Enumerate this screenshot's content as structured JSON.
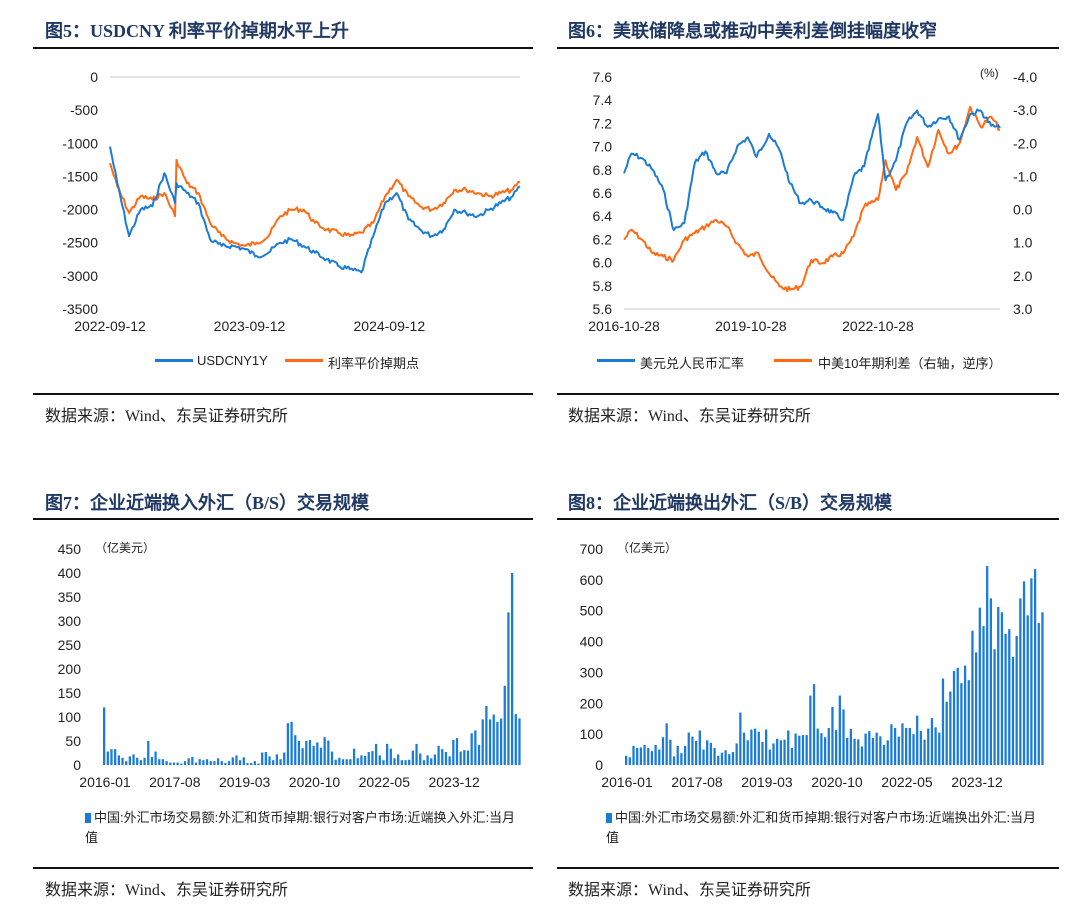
{
  "colors": {
    "blue": "#1a7cd6",
    "orange": "#ff6a13",
    "title": "#1f3864"
  },
  "panels": [
    {
      "title": "图5：USDCNY 利率平价掉期水平上升",
      "source": "数据来源：Wind、东吴证券研究所"
    },
    {
      "title": "图6：美联储降息或推动中美利差倒挂幅度收窄",
      "source": "数据来源：Wind、东吴证券研究所"
    },
    {
      "title": "图7：企业近端换入外汇（B/S）交易规模",
      "source": "数据来源：Wind、东吴证券研究所"
    },
    {
      "title": "图8：企业近端换出外汇（S/B）交易规模",
      "source": "数据来源：Wind、东吴证券研究所"
    }
  ],
  "chart_data": [
    {
      "type": "line",
      "title": "图5：USDCNY 利率平价掉期水平上升",
      "ylim": [
        -3500,
        0
      ],
      "y_ticks": [
        "0",
        "-500",
        "-1000",
        "-1500",
        "-2000",
        "-2500",
        "-3000",
        "-3500"
      ],
      "x_ticks": [
        "2022-09-12",
        "2023-09-12",
        "2024-09-12"
      ],
      "x_range": [
        "2022-09-12",
        "2025-08-20"
      ],
      "grid": "top line only",
      "legend": "bottom",
      "series": [
        {
          "name": "USDCNY1Y",
          "color": "#1a7cd6",
          "x": [
            "2022-09-12",
            "2022-10-01",
            "2022-11-01",
            "2022-12-01",
            "2023-01-01",
            "2023-02-01",
            "2023-03-01",
            "2023-03-05",
            "2023-04-01",
            "2023-05-01",
            "2023-06-01",
            "2023-07-01",
            "2023-08-01",
            "2023-09-01",
            "2023-10-01",
            "2023-11-01",
            "2023-12-01",
            "2024-01-01",
            "2024-02-01",
            "2024-03-01",
            "2024-04-01",
            "2024-05-01",
            "2024-06-01",
            "2024-07-01",
            "2024-08-01",
            "2024-09-01",
            "2024-10-01",
            "2024-11-01",
            "2024-12-01",
            "2025-01-01",
            "2025-02-01",
            "2025-03-01",
            "2025-04-01",
            "2025-05-01",
            "2025-06-01",
            "2025-07-01",
            "2025-08-01",
            "2025-08-20"
          ],
          "y": [
            -1050,
            -1600,
            -2400,
            -2000,
            -1950,
            -1450,
            -1900,
            -1600,
            -1750,
            -1900,
            -2450,
            -2550,
            -2550,
            -2600,
            -2700,
            -2650,
            -2500,
            -2450,
            -2550,
            -2650,
            -2750,
            -2850,
            -2900,
            -2950,
            -2400,
            -1900,
            -1750,
            -2150,
            -2300,
            -2400,
            -2300,
            -2000,
            -2050,
            -2100,
            -2000,
            -1900,
            -1800,
            -1650
          ]
        },
        {
          "name": "利率平价掉期点",
          "color": "#ff6a13",
          "x": [
            "2022-09-12",
            "2022-10-01",
            "2022-11-01",
            "2022-12-01",
            "2023-01-01",
            "2023-02-01",
            "2023-03-01",
            "2023-03-05",
            "2023-04-01",
            "2023-05-01",
            "2023-06-01",
            "2023-07-01",
            "2023-08-01",
            "2023-09-01",
            "2023-10-01",
            "2023-11-01",
            "2023-12-01",
            "2024-01-01",
            "2024-02-01",
            "2024-03-01",
            "2024-04-01",
            "2024-05-01",
            "2024-06-01",
            "2024-07-01",
            "2024-08-01",
            "2024-09-01",
            "2024-10-01",
            "2024-11-01",
            "2024-12-01",
            "2025-01-01",
            "2025-02-01",
            "2025-03-01",
            "2025-04-01",
            "2025-05-01",
            "2025-06-01",
            "2025-07-01",
            "2025-08-01",
            "2025-08-20"
          ],
          "y": [
            -1300,
            -1650,
            -2050,
            -1800,
            -1850,
            -1750,
            -2100,
            -1250,
            -1600,
            -1750,
            -2200,
            -2400,
            -2500,
            -2550,
            -2500,
            -2400,
            -2100,
            -2000,
            -2000,
            -2200,
            -2300,
            -2350,
            -2400,
            -2350,
            -2200,
            -1800,
            -1550,
            -1800,
            -1950,
            -2000,
            -1900,
            -1700,
            -1700,
            -1750,
            -1800,
            -1750,
            -1700,
            -1580
          ]
        }
      ]
    },
    {
      "type": "line",
      "title": "图6：美联储降息或推动中美利差倒挂幅度收窄",
      "ylim": [
        5.6,
        7.6
      ],
      "y2lim": [
        -4.0,
        3.0
      ],
      "y2_reversed": true,
      "y2_unit": "(%)",
      "y_ticks": [
        "7.6",
        "7.4",
        "7.2",
        "7.0",
        "6.8",
        "6.6",
        "6.4",
        "6.2",
        "6.0",
        "5.8",
        "5.6"
      ],
      "y2_ticks": [
        "-4.0",
        "-3.0",
        "-2.0",
        "-1.0",
        "0.0",
        "1.0",
        "2.0",
        "3.0"
      ],
      "x_ticks": [
        "2016-10-28",
        "2019-10-28",
        "2022-10-28"
      ],
      "x_range": [
        "2016-10-28",
        "2025-09-15"
      ],
      "legend": "bottom",
      "series": [
        {
          "name": "美元兑人民币汇率",
          "color": "#1a7cd6",
          "axis": "left",
          "x": [
            "2016-10-28",
            "2017-01-01",
            "2017-04-01",
            "2017-07-01",
            "2017-10-01",
            "2018-01-01",
            "2018-04-01",
            "2018-07-01",
            "2018-10-01",
            "2019-01-01",
            "2019-04-01",
            "2019-07-01",
            "2019-10-01",
            "2019-12-15",
            "2020-04-01",
            "2020-07-01",
            "2020-10-01",
            "2021-01-01",
            "2021-04-01",
            "2021-07-01",
            "2021-10-01",
            "2022-01-01",
            "2022-04-01",
            "2022-07-01",
            "2022-10-28",
            "2023-01-01",
            "2023-04-01",
            "2023-07-01",
            "2023-10-01",
            "2024-01-01",
            "2024-04-01",
            "2024-07-01",
            "2024-10-01",
            "2025-01-01",
            "2025-04-01",
            "2025-07-01",
            "2025-09-15"
          ],
          "y": [
            6.77,
            6.94,
            6.9,
            6.8,
            6.63,
            6.28,
            6.34,
            6.86,
            6.96,
            6.77,
            6.77,
            7.0,
            7.08,
            6.91,
            7.11,
            6.97,
            6.68,
            6.51,
            6.54,
            6.48,
            6.43,
            6.37,
            6.74,
            6.83,
            7.28,
            6.71,
            6.88,
            7.2,
            7.31,
            7.17,
            7.24,
            7.26,
            7.06,
            7.28,
            7.31,
            7.18,
            7.16
          ]
        },
        {
          "name": "中美10年期利差（右轴，逆序）",
          "color": "#ff6a13",
          "axis": "right",
          "x": [
            "2016-10-28",
            "2017-01-01",
            "2017-04-01",
            "2017-07-01",
            "2017-10-01",
            "2018-01-01",
            "2018-04-01",
            "2018-07-01",
            "2018-10-01",
            "2019-01-01",
            "2019-04-01",
            "2019-07-01",
            "2019-10-01",
            "2020-01-01",
            "2020-04-01",
            "2020-07-01",
            "2020-10-01",
            "2021-01-01",
            "2021-04-01",
            "2021-07-01",
            "2021-10-01",
            "2022-01-01",
            "2022-04-01",
            "2022-07-01",
            "2022-10-28",
            "2023-01-01",
            "2023-04-01",
            "2023-07-01",
            "2023-10-01",
            "2024-01-01",
            "2024-04-01",
            "2024-07-01",
            "2024-10-01",
            "2025-01-01",
            "2025-04-01",
            "2025-07-01",
            "2025-09-15"
          ],
          "y": [
            0.91,
            0.61,
            0.91,
            1.32,
            1.42,
            1.52,
            0.91,
            0.71,
            0.51,
            0.31,
            0.51,
            1.02,
            1.42,
            1.32,
            1.92,
            2.32,
            2.42,
            2.32,
            1.52,
            1.62,
            1.42,
            1.32,
            0.81,
            -0.09,
            -0.29,
            -1.49,
            -0.59,
            -1.09,
            -2.19,
            -1.29,
            -2.4,
            -1.69,
            -1.99,
            -3.1,
            -2.5,
            -2.8,
            -2.4
          ]
        }
      ]
    },
    {
      "type": "bar",
      "title": "图7：企业近端换入外汇（B/S）交易规模",
      "unit": "（亿美元）",
      "ylim": [
        0,
        450
      ],
      "y_ticks": [
        "450",
        "400",
        "350",
        "300",
        "250",
        "200",
        "150",
        "100",
        "50",
        "0"
      ],
      "x_ticks": [
        "2016-01",
        "2017-08",
        "2019-03",
        "2020-10",
        "2022-05",
        "2023-12"
      ],
      "start_month": "2016-01",
      "legend": "bottom",
      "series": [
        {
          "name": "中国:外汇市场交易额:外汇和货币掉期:银行对客户市场:近端换入外汇:当月值",
          "color": "#1a7cd6",
          "values": [
            120,
            28,
            33,
            33,
            20,
            15,
            8,
            18,
            22,
            15,
            10,
            15,
            50,
            17,
            28,
            12,
            12,
            8,
            5,
            5,
            5,
            3,
            8,
            14,
            17,
            5,
            12,
            10,
            12,
            8,
            8,
            14,
            8,
            4,
            8,
            16,
            20,
            10,
            16,
            4,
            4,
            8,
            3,
            26,
            27,
            18,
            10,
            22,
            12,
            26,
            87,
            90,
            62,
            50,
            35,
            50,
            52,
            40,
            47,
            36,
            58,
            51,
            28,
            11,
            15,
            12,
            12,
            12,
            34,
            14,
            20,
            19,
            27,
            29,
            44,
            20,
            10,
            44,
            34,
            14,
            22,
            10,
            10,
            11,
            30,
            44,
            24,
            10,
            20,
            14,
            22,
            40,
            33,
            27,
            18,
            52,
            56,
            28,
            31,
            30,
            66,
            72,
            42,
            95,
            123,
            95,
            105,
            90,
            97,
            165,
            318,
            400,
            106,
            97
          ]
        }
      ]
    },
    {
      "type": "bar",
      "title": "图8：企业近端换出外汇（S/B）交易规模",
      "unit": "（亿美元）",
      "ylim": [
        0,
        700
      ],
      "y_ticks": [
        "700",
        "600",
        "500",
        "400",
        "300",
        "200",
        "100",
        "0"
      ],
      "x_ticks": [
        "2016-01",
        "2017-08",
        "2019-03",
        "2020-10",
        "2022-05",
        "2023-12"
      ],
      "start_month": "2016-01",
      "legend": "bottom",
      "series": [
        {
          "name": "中国:外汇市场交易额:外汇和货币掉期:银行对客户市场:近端换出外汇:当月值",
          "color": "#1a7cd6",
          "values": [
            30,
            25,
            62,
            55,
            57,
            65,
            55,
            45,
            65,
            50,
            90,
            135,
            82,
            28,
            62,
            38,
            62,
            105,
            92,
            78,
            112,
            50,
            80,
            72,
            55,
            30,
            40,
            48,
            35,
            42,
            70,
            170,
            105,
            80,
            115,
            118,
            108,
            75,
            115,
            50,
            70,
            85,
            80,
            82,
            112,
            55,
            102,
            95,
            97,
            97,
            225,
            262,
            118,
            103,
            90,
            120,
            188,
            113,
            225,
            180,
            88,
            117,
            85,
            83,
            60,
            102,
            110,
            88,
            105,
            93,
            65,
            80,
            132,
            120,
            92,
            135,
            120,
            120,
            100,
            160,
            110,
            82,
            118,
            152,
            122,
            105,
            280,
            205,
            238,
            305,
            315,
            265,
            322,
            275,
            435,
            365,
            510,
            450,
            645,
            540,
            375,
            512,
            495,
            425,
            440,
            350,
            418,
            540,
            595,
            485,
            605,
            635,
            460,
            495
          ]
        }
      ]
    }
  ]
}
